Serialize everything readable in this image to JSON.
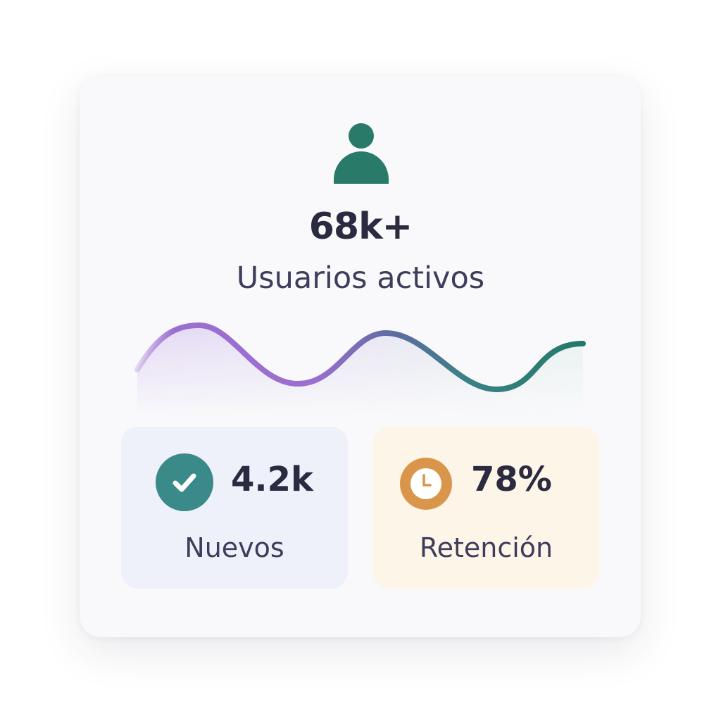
{
  "header": {
    "icon": "user-icon",
    "value": "68k+",
    "label": "Usuarios activos"
  },
  "trend": {
    "icon": "sparkline-wave",
    "gradient_colors": [
      "#9b6fd0",
      "#2a7a6a"
    ]
  },
  "stats": [
    {
      "icon": "check-circle-icon",
      "value": "4.2k",
      "label": "Nuevos",
      "color": "#3a8a8a",
      "background": "#eef0fa"
    },
    {
      "icon": "clock-icon",
      "value": "78%",
      "label": "Retención",
      "color": "#d9954a",
      "background": "#fdf5e7"
    }
  ],
  "colors": {
    "accent_green": "#2a7a6a",
    "text_dark": "#2a2a40",
    "card_bg": "#f9f9fb"
  }
}
